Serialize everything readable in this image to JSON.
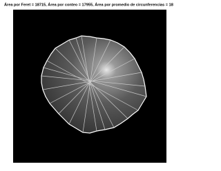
{
  "title": "Área por Feret = 18715, Área por conteo = 17955, Área por promedio de circunferencias = 18"
}
